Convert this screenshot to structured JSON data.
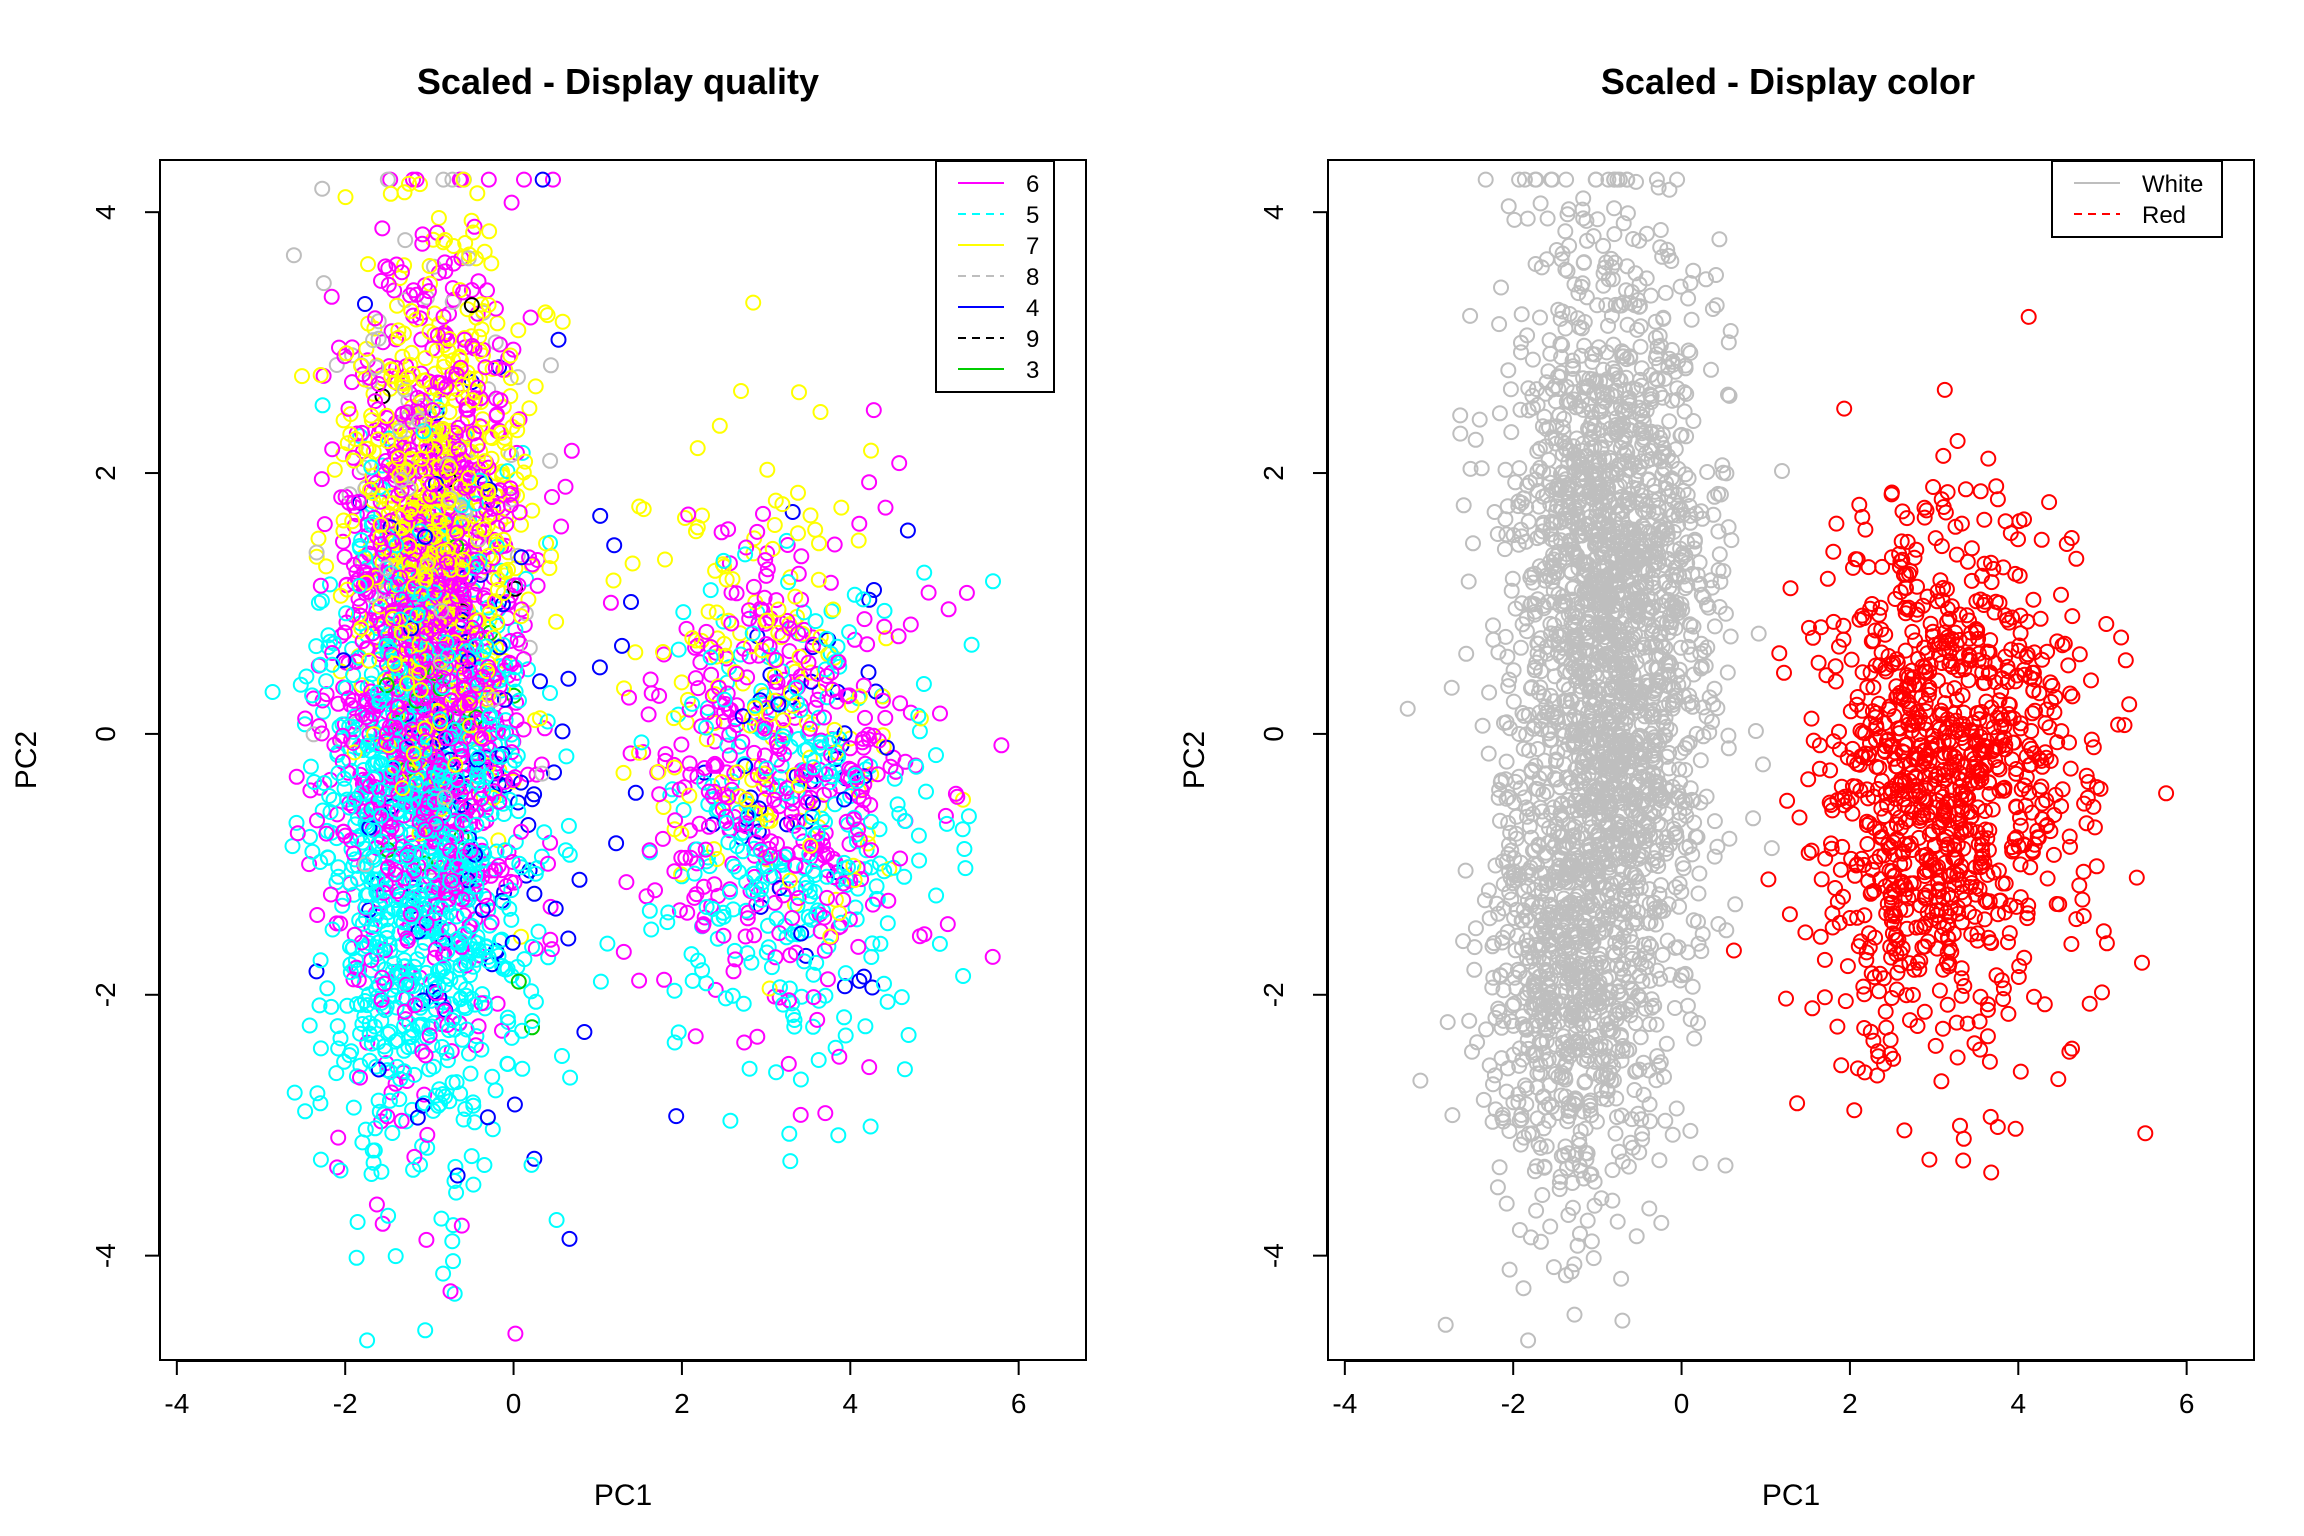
{
  "chart_data": [
    {
      "type": "scatter",
      "title": "Scaled - Display quality",
      "xlabel": "PC1",
      "ylabel": "PC2",
      "xlim": [
        -4.2,
        6.8
      ],
      "ylim": [
        -4.8,
        4.4
      ],
      "xticks": [
        -4,
        -2,
        0,
        2,
        4,
        6
      ],
      "yticks": [
        -4,
        -2,
        0,
        2,
        4
      ],
      "xtick_labels": [
        "-4",
        "-2",
        "0",
        "2",
        "4",
        "6"
      ],
      "ytick_labels": [
        "-4",
        "-2",
        "0",
        "2",
        "4"
      ],
      "grid": false,
      "legend_position": "top-right",
      "marker": "open-circle",
      "series": [
        {
          "name": "6",
          "color": "#ff00ff",
          "line": "solid",
          "clusters": [
            {
              "cx": -1.0,
              "cy": 0.6,
              "sx": 0.55,
              "sy": 1.45,
              "n": 1200
            },
            {
              "cx": 3.2,
              "cy": -0.3,
              "sx": 0.8,
              "sy": 0.95,
              "n": 390
            }
          ]
        },
        {
          "name": "5",
          "color": "#00ffff",
          "line": "dashed",
          "clusters": [
            {
              "cx": -1.1,
              "cy": -0.8,
              "sx": 0.6,
              "sy": 1.3,
              "n": 1020
            },
            {
              "cx": 3.3,
              "cy": -0.7,
              "sx": 0.85,
              "sy": 0.95,
              "n": 300
            }
          ]
        },
        {
          "name": "7",
          "color": "#ffff00",
          "line": "solid",
          "clusters": [
            {
              "cx": -0.9,
              "cy": 1.6,
              "sx": 0.5,
              "sy": 1.0,
              "n": 640
            },
            {
              "cx": 2.9,
              "cy": 0.4,
              "sx": 0.8,
              "sy": 0.9,
              "n": 160
            }
          ]
        },
        {
          "name": "8",
          "color": "#bebebe",
          "line": "dashed",
          "clusters": [
            {
              "cx": -1.0,
              "cy": 1.8,
              "sx": 0.7,
              "sy": 1.2,
              "n": 95
            }
          ]
        },
        {
          "name": "4",
          "color": "#0000ff",
          "line": "solid",
          "clusters": [
            {
              "cx": -0.4,
              "cy": 0.0,
              "sx": 0.9,
              "sy": 1.5,
              "n": 120
            },
            {
              "cx": 3.6,
              "cy": -0.3,
              "sx": 0.8,
              "sy": 0.9,
              "n": 45
            }
          ]
        },
        {
          "name": "9",
          "color": "#000000",
          "line": "dashed",
          "clusters": [
            {
              "cx": -0.7,
              "cy": 1.5,
              "sx": 0.4,
              "sy": 0.8,
              "n": 5
            }
          ]
        },
        {
          "name": "3",
          "color": "#00cd00",
          "line": "solid",
          "clusters": [
            {
              "cx": -0.6,
              "cy": 0.0,
              "sx": 0.6,
              "sy": 1.0,
              "n": 20
            }
          ]
        }
      ]
    },
    {
      "type": "scatter",
      "title": "Scaled - Display color",
      "xlabel": "PC1",
      "ylabel": "PC2",
      "xlim": [
        -4.2,
        6.8
      ],
      "ylim": [
        -4.8,
        4.4
      ],
      "xticks": [
        -4,
        -2,
        0,
        2,
        4,
        6
      ],
      "yticks": [
        -4,
        -2,
        0,
        2,
        4
      ],
      "xtick_labels": [
        "-4",
        "-2",
        "0",
        "2",
        "4",
        "6"
      ],
      "ytick_labels": [
        "-4",
        "-2",
        "0",
        "2",
        "4"
      ],
      "grid": false,
      "legend_position": "top-right",
      "marker": "open-circle",
      "series": [
        {
          "name": "White",
          "color": "#bebebe",
          "line": "solid",
          "clusters": [
            {
              "cx": -0.85,
              "cy": 0.9,
              "sx": 0.6,
              "sy": 1.45,
              "n": 2000
            },
            {
              "cx": -1.3,
              "cy": -1.9,
              "sx": 0.55,
              "sy": 0.9,
              "n": 750
            }
          ]
        },
        {
          "name": "Red",
          "color": "#ff0000",
          "line": "dashed",
          "clusters": [
            {
              "cx": 3.1,
              "cy": -0.35,
              "sx": 0.8,
              "sy": 1.0,
              "n": 1060
            }
          ]
        }
      ]
    }
  ]
}
